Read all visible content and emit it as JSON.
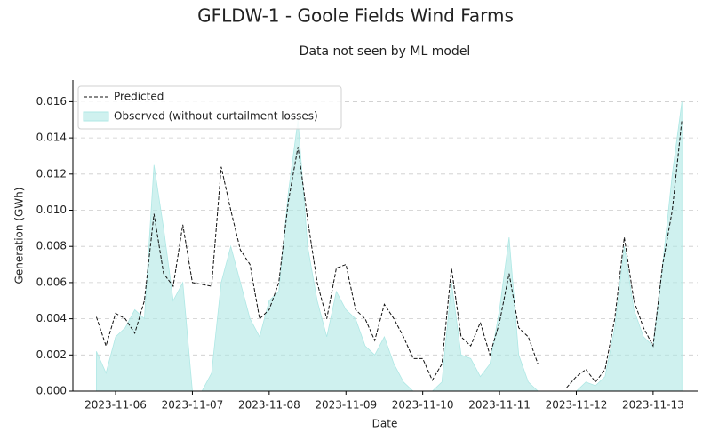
{
  "chart_data": {
    "type": "line",
    "title": "GFLDW-1 - Goole Fields Wind Farms",
    "subtitle": "Data not seen by ML model",
    "xlabel": "Date",
    "ylabel": "Generation (GWh)",
    "x": [
      5.75,
      5.875,
      6.0,
      6.125,
      6.25,
      6.375,
      6.5,
      6.625,
      6.75,
      6.875,
      7.0,
      7.125,
      7.25,
      7.375,
      7.5,
      7.625,
      7.75,
      7.875,
      8.0,
      8.125,
      8.25,
      8.375,
      8.5,
      8.625,
      8.75,
      8.875,
      9.0,
      9.125,
      9.25,
      9.375,
      9.5,
      9.625,
      9.75,
      9.875,
      10.0,
      10.125,
      10.25,
      10.375,
      10.5,
      10.625,
      10.75,
      10.875,
      11.0,
      11.125,
      11.25,
      11.375,
      11.5,
      11.625,
      11.75,
      11.875,
      12.0,
      12.125,
      12.25,
      12.375,
      12.5,
      12.625,
      12.75,
      12.875,
      13.0,
      13.125,
      13.25,
      13.375
    ],
    "series": [
      {
        "name": "Predicted",
        "color": "#111111",
        "style": "dashed",
        "values": [
          0.0041,
          0.0025,
          0.0043,
          0.004,
          0.0032,
          0.005,
          0.0098,
          0.0065,
          0.0058,
          0.0092,
          0.006,
          0.0059,
          0.0058,
          0.0124,
          0.01,
          0.0078,
          0.007,
          0.004,
          0.0045,
          0.006,
          0.0105,
          0.0135,
          0.0095,
          0.006,
          0.004,
          0.0068,
          0.007,
          0.0045,
          0.004,
          0.0028,
          0.0048,
          0.004,
          0.003,
          0.0018,
          0.0018,
          0.0006,
          0.0015,
          0.0068,
          0.003,
          0.0025,
          0.0038,
          0.002,
          0.0038,
          0.0065,
          0.0035,
          0.003,
          0.0015,
          null,
          null,
          0.0002,
          0.0008,
          0.0012,
          0.0005,
          0.0012,
          0.004,
          0.0085,
          0.005,
          0.0035,
          0.0025,
          0.007,
          0.01,
          0.015
        ]
      },
      {
        "name": "Observed (without curtailment losses)",
        "color": "#afe8e5",
        "style": "area",
        "values": [
          0.0022,
          0.001,
          0.003,
          0.0035,
          0.0045,
          0.004,
          0.0125,
          0.009,
          0.005,
          0.006,
          0,
          0,
          0.001,
          0.006,
          0.008,
          0.006,
          0.004,
          0.003,
          0.005,
          0.0055,
          0.011,
          0.015,
          0.008,
          0.005,
          0.003,
          0.0055,
          0.0045,
          0.004,
          0.0025,
          0.002,
          0.003,
          0.0015,
          0.0005,
          0,
          0,
          0,
          0.0005,
          0.006,
          0.002,
          0.0018,
          0.0008,
          0.0015,
          0.0045,
          0.0085,
          0.002,
          0.0005,
          0,
          0,
          0,
          0,
          0,
          0.0005,
          0.0003,
          0.0008,
          0.0035,
          0.008,
          0.0045,
          0.003,
          0.0025,
          0.007,
          0.012,
          0.016
        ]
      }
    ],
    "xlim": [
      5.444,
      13.58
    ],
    "xticks": [
      {
        "value": 6,
        "label": "2023-11-06"
      },
      {
        "value": 7,
        "label": "2023-11-07"
      },
      {
        "value": 8,
        "label": "2023-11-08"
      },
      {
        "value": 9,
        "label": "2023-11-09"
      },
      {
        "value": 10,
        "label": "2023-11-10"
      },
      {
        "value": 11,
        "label": "2023-11-11"
      },
      {
        "value": 12,
        "label": "2023-11-12"
      },
      {
        "value": 13,
        "label": "2023-11-13"
      }
    ],
    "ylim": [
      0,
      0.0172
    ],
    "yticks": [
      {
        "value": 0,
        "label": "0.000"
      },
      {
        "value": 0.002,
        "label": "0.002"
      },
      {
        "value": 0.004,
        "label": "0.004"
      },
      {
        "value": 0.006,
        "label": "0.006"
      },
      {
        "value": 0.008,
        "label": "0.008"
      },
      {
        "value": 0.01,
        "label": "0.010"
      },
      {
        "value": 0.012,
        "label": "0.012"
      },
      {
        "value": 0.014,
        "label": "0.014"
      },
      {
        "value": 0.016,
        "label": "0.016"
      }
    ],
    "grid": true,
    "legend": "upper-left"
  }
}
